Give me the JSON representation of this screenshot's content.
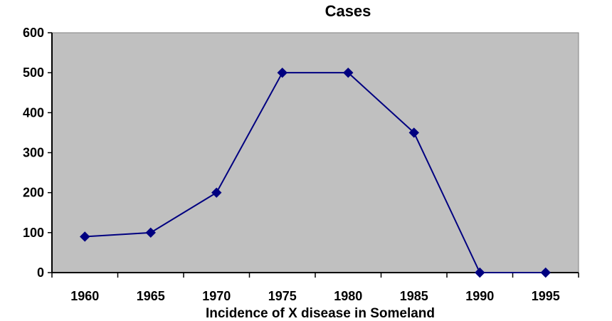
{
  "chart_data": {
    "type": "line",
    "title": "Cases",
    "xlabel": "Incidence of X disease in Someland",
    "ylabel": "",
    "categories": [
      "1960",
      "1965",
      "1970",
      "1975",
      "1980",
      "1985",
      "1990",
      "1995"
    ],
    "series": [
      {
        "values": [
          90,
          100,
          200,
          500,
          500,
          350,
          0,
          0
        ],
        "color": "#000080",
        "marker": "diamond"
      }
    ],
    "y_ticks": [
      "0",
      "100",
      "200",
      "300",
      "400",
      "500",
      "600"
    ],
    "ylim": [
      0,
      600
    ],
    "grid": false,
    "legend": "none",
    "plot_background": "#c0c0c0"
  }
}
